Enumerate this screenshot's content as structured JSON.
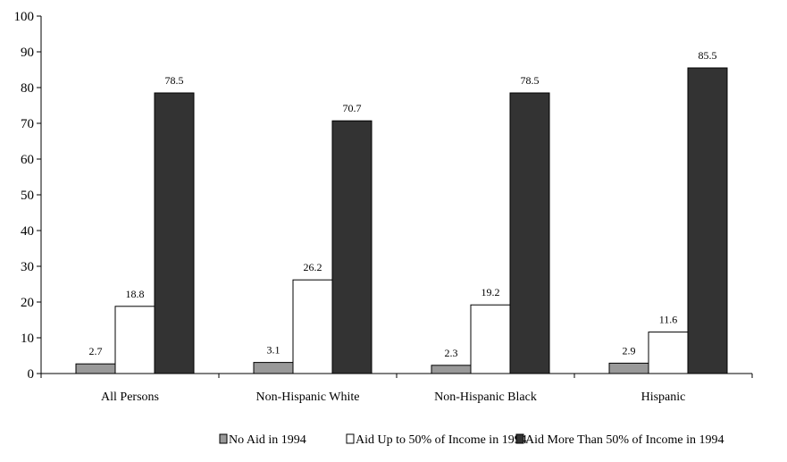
{
  "chart_data": {
    "type": "bar",
    "categories": [
      "All Persons",
      "Non-Hispanic White",
      "Non-Hispanic Black",
      "Hispanic"
    ],
    "series": [
      {
        "name": "No Aid in 1994",
        "values": [
          2.7,
          3.1,
          2.3,
          2.9
        ],
        "color": "#999999"
      },
      {
        "name": "Aid Up to 50% of Income in 1994",
        "values": [
          18.8,
          26.2,
          19.2,
          11.6
        ],
        "color": "#ffffff"
      },
      {
        "name": "Aid More Than 50% of Income in 1994",
        "values": [
          78.5,
          70.7,
          78.5,
          85.5
        ],
        "color": "#333333"
      }
    ],
    "title": "",
    "xlabel": "",
    "ylabel": "",
    "ylim": [
      0,
      100
    ],
    "yticks": [
      0,
      10,
      20,
      30,
      40,
      50,
      60,
      70,
      80,
      90,
      100
    ],
    "grid": false,
    "legend": "bottom",
    "data_labels": true
  }
}
